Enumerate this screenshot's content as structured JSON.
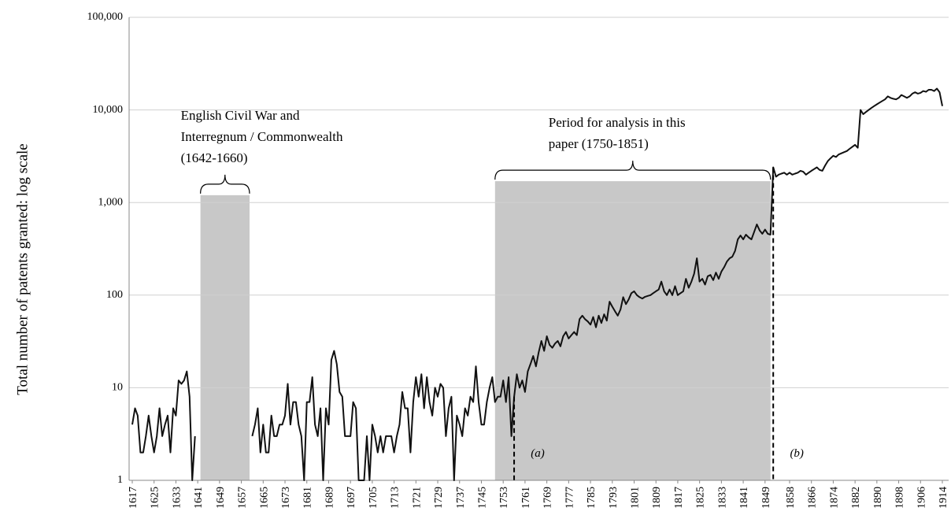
{
  "chart_data": {
    "type": "line",
    "y_label": "Total number of patents granted: log scale",
    "log_scale_y": true,
    "grid": true,
    "ylim": [
      1,
      100000
    ],
    "yticks": [
      1,
      10,
      100,
      {
        "value": 1000,
        "label": "1,000"
      },
      {
        "value": 10000,
        "label": "10,000"
      },
      {
        "value": 100000,
        "label": "100,000"
      }
    ],
    "xlim": [
      1617,
      1914
    ],
    "xticks": [
      1617,
      1625,
      1633,
      1641,
      1649,
      1657,
      1665,
      1673,
      1681,
      1689,
      1697,
      1705,
      1713,
      1721,
      1729,
      1737,
      1745,
      1753,
      1761,
      1769,
      1777,
      1785,
      1793,
      1801,
      1809,
      1817,
      1825,
      1833,
      1841,
      1849,
      1858,
      1866,
      1874,
      1882,
      1890,
      1898,
      1906,
      1914
    ],
    "shaded_regions": [
      {
        "x": [
          1642,
          1660
        ],
        "top": 1200,
        "label_lines": [
          "English Civil War and",
          "Interregnum / Commonwealth",
          "(1642-1660)"
        ]
      },
      {
        "x": [
          1750,
          1851
        ],
        "top": 1700,
        "label_lines": [
          "Period for analysis in this",
          "paper (1750-1851)"
        ]
      }
    ],
    "markers": [
      {
        "x": 1757,
        "label": "(a)"
      },
      {
        "x": 1852,
        "label": "(b)"
      }
    ],
    "series": [
      {
        "name": null,
        "color": "#111111",
        "x": [
          1617,
          1618,
          1619,
          1620,
          1621,
          1622,
          1623,
          1624,
          1625,
          1626,
          1627,
          1628,
          1629,
          1630,
          1631,
          1632,
          1633,
          1634,
          1635,
          1636,
          1637,
          1638,
          1639,
          1640,
          1641,
          1642,
          1643,
          1644,
          1645,
          1646,
          1647,
          1648,
          1649,
          1650,
          1651,
          1652,
          1653,
          1654,
          1655,
          1656,
          1657,
          1658,
          1659,
          1660,
          1661,
          1662,
          1663,
          1664,
          1665,
          1666,
          1667,
          1668,
          1669,
          1670,
          1671,
          1672,
          1673,
          1674,
          1675,
          1676,
          1677,
          1678,
          1679,
          1680,
          1681,
          1682,
          1683,
          1684,
          1685,
          1686,
          1687,
          1688,
          1689,
          1690,
          1691,
          1692,
          1693,
          1694,
          1695,
          1696,
          1697,
          1698,
          1699,
          1700,
          1701,
          1702,
          1703,
          1704,
          1705,
          1706,
          1707,
          1708,
          1709,
          1710,
          1711,
          1712,
          1713,
          1714,
          1715,
          1716,
          1717,
          1718,
          1719,
          1720,
          1721,
          1722,
          1723,
          1724,
          1725,
          1726,
          1727,
          1728,
          1729,
          1730,
          1731,
          1732,
          1733,
          1734,
          1735,
          1736,
          1737,
          1738,
          1739,
          1740,
          1741,
          1742,
          1743,
          1744,
          1745,
          1746,
          1747,
          1748,
          1749,
          1750,
          1751,
          1752,
          1753,
          1754,
          1755,
          1756,
          1757,
          1758,
          1759,
          1760,
          1761,
          1762,
          1763,
          1764,
          1765,
          1766,
          1767,
          1768,
          1769,
          1770,
          1771,
          1772,
          1773,
          1774,
          1775,
          1776,
          1777,
          1778,
          1779,
          1780,
          1781,
          1782,
          1783,
          1784,
          1785,
          1786,
          1787,
          1788,
          1789,
          1790,
          1791,
          1792,
          1793,
          1794,
          1795,
          1796,
          1797,
          1798,
          1799,
          1800,
          1801,
          1802,
          1803,
          1804,
          1805,
          1806,
          1807,
          1808,
          1809,
          1810,
          1811,
          1812,
          1813,
          1814,
          1815,
          1816,
          1817,
          1818,
          1819,
          1820,
          1821,
          1822,
          1823,
          1824,
          1825,
          1826,
          1827,
          1828,
          1829,
          1830,
          1831,
          1832,
          1833,
          1834,
          1835,
          1836,
          1837,
          1838,
          1839,
          1840,
          1841,
          1842,
          1843,
          1844,
          1845,
          1846,
          1847,
          1848,
          1849,
          1850,
          1851,
          1852,
          1853,
          1854,
          1855,
          1856,
          1857,
          1858,
          1859,
          1860,
          1861,
          1862,
          1863,
          1864,
          1865,
          1866,
          1867,
          1868,
          1869,
          1870,
          1871,
          1872,
          1873,
          1874,
          1875,
          1876,
          1877,
          1878,
          1879,
          1880,
          1881,
          1882,
          1883,
          1884,
          1885,
          1886,
          1887,
          1888,
          1889,
          1890,
          1891,
          1892,
          1893,
          1894,
          1895,
          1896,
          1897,
          1898,
          1899,
          1900,
          1901,
          1902,
          1903,
          1904,
          1905,
          1906,
          1907,
          1908,
          1909,
          1910,
          1911,
          1912,
          1913,
          1914
        ],
        "values": [
          4,
          6,
          5,
          2,
          2,
          3,
          5,
          3,
          2,
          3,
          6,
          3,
          4,
          5,
          2,
          6,
          5,
          12,
          11,
          12,
          15,
          8,
          1,
          3,
          null,
          null,
          null,
          null,
          null,
          null,
          null,
          null,
          null,
          null,
          null,
          null,
          null,
          null,
          null,
          null,
          null,
          null,
          null,
          null,
          3,
          4,
          6,
          2,
          4,
          2,
          2,
          5,
          3,
          3,
          4,
          4,
          5,
          11,
          4,
          7,
          7,
          4,
          3,
          1,
          7,
          7,
          13,
          4,
          3,
          6,
          1,
          6,
          4,
          20,
          25,
          18,
          9,
          8,
          3,
          3,
          3,
          7,
          6,
          1,
          1,
          1,
          3,
          1,
          4,
          3,
          2,
          3,
          2,
          3,
          3,
          3,
          2,
          3,
          4,
          9,
          6,
          6,
          2,
          7,
          13,
          8,
          14,
          6,
          13,
          7,
          5,
          10,
          8,
          11,
          10,
          3,
          6,
          8,
          1,
          5,
          4,
          3,
          6,
          5,
          8,
          7,
          17,
          7,
          4,
          4,
          7,
          10,
          13,
          7,
          8,
          8,
          12,
          7,
          13,
          3,
          8,
          14,
          10,
          12,
          9,
          15,
          18,
          22,
          17,
          24,
          32,
          25,
          36,
          29,
          27,
          30,
          32,
          28,
          36,
          40,
          34,
          37,
          40,
          37,
          55,
          60,
          55,
          52,
          48,
          58,
          45,
          60,
          50,
          62,
          53,
          85,
          75,
          67,
          60,
          70,
          95,
          80,
          90,
          105,
          110,
          100,
          95,
          92,
          96,
          98,
          100,
          105,
          110,
          115,
          140,
          110,
          100,
          115,
          100,
          125,
          100,
          105,
          110,
          150,
          120,
          140,
          170,
          250,
          140,
          150,
          130,
          160,
          165,
          145,
          175,
          150,
          180,
          200,
          230,
          250,
          260,
          300,
          400,
          440,
          400,
          450,
          420,
          400,
          480,
          580,
          500,
          460,
          510,
          460,
          450,
          2400,
          1900,
          2000,
          2050,
          2100,
          2000,
          2100,
          2000,
          2050,
          2100,
          2200,
          2150,
          2000,
          2100,
          2200,
          2300,
          2400,
          2250,
          2200,
          2500,
          2800,
          3000,
          3200,
          3100,
          3300,
          3400,
          3500,
          3600,
          3800,
          4000,
          4200,
          3900,
          10000,
          9000,
          9500,
          10000,
          10500,
          11000,
          11500,
          12000,
          12500,
          13000,
          14000,
          13500,
          13200,
          13000,
          13500,
          14500,
          14000,
          13500,
          14000,
          15000,
          15500,
          15000,
          15300,
          16000,
          15700,
          16500,
          16500,
          16000,
          17000,
          15500,
          11000
        ]
      }
    ]
  }
}
